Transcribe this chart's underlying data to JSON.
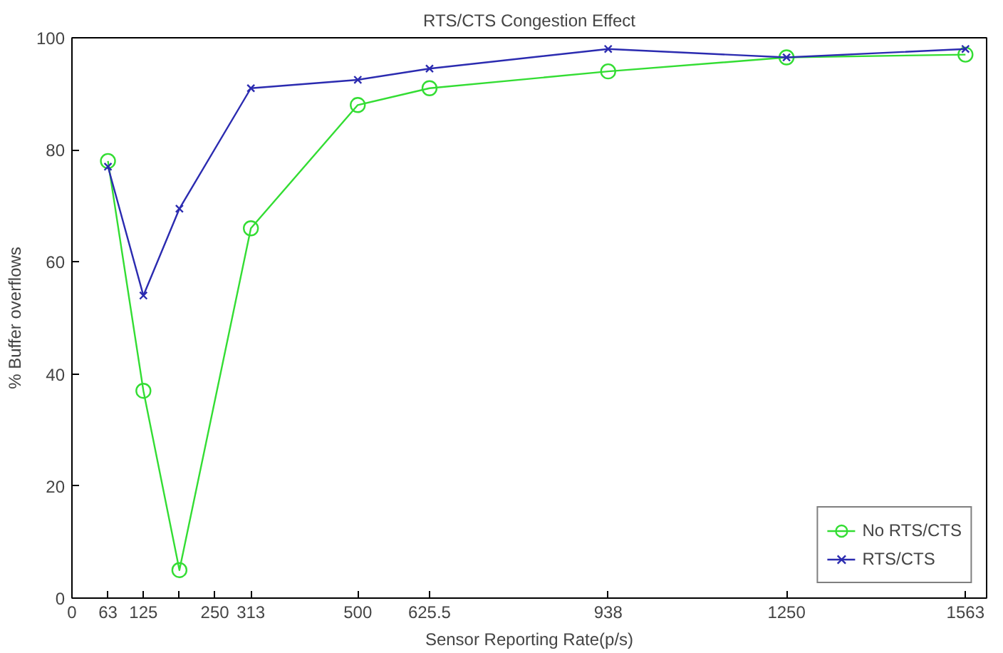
{
  "chart_data": {
    "type": "line",
    "title": "RTS/CTS Congestion Effect",
    "xlabel": "Sensor Reporting Rate(p/s)",
    "ylabel": "% Buffer overflows",
    "x": [
      63,
      125,
      188,
      313,
      500,
      625.5,
      938,
      1250,
      1563
    ],
    "series": [
      {
        "name": "No RTS/CTS",
        "color": "#33dd33",
        "marker": "circle",
        "values": [
          78,
          37,
          5,
          66,
          88,
          91,
          94,
          96.5,
          97
        ]
      },
      {
        "name": "RTS/CTS",
        "color": "#2b2bb0",
        "marker": "cross",
        "values": [
          77,
          54,
          69.5,
          91,
          92.5,
          94.5,
          98,
          96.5,
          98
        ]
      }
    ],
    "xlim": [
      0,
      1600
    ],
    "ylim": [
      0,
      100
    ],
    "xticks": [
      0,
      63,
      125,
      {
        "value": 188,
        "label": null
      },
      250,
      313,
      500,
      625.5,
      938,
      1250,
      1563
    ],
    "yticks": [
      0,
      20,
      40,
      60,
      80,
      100
    ],
    "grid": false,
    "legend": "bottom right",
    "line_style": "solid"
  }
}
